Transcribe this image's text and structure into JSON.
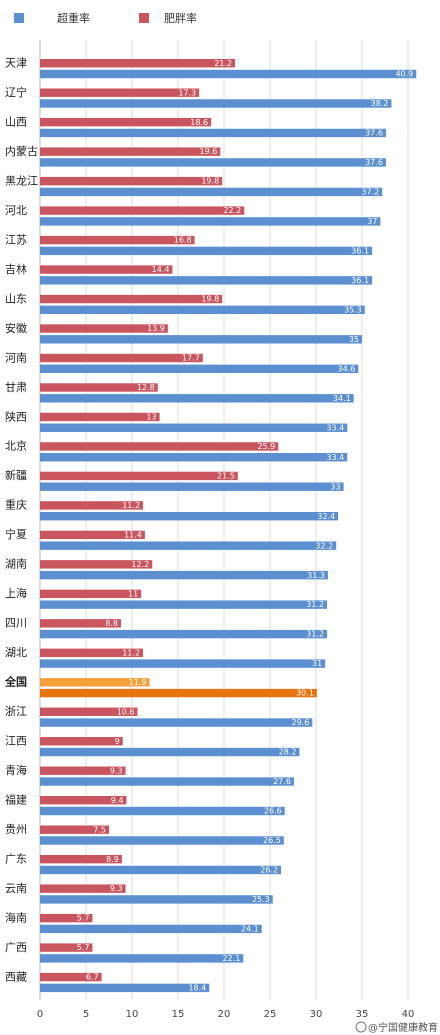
{
  "chart_data": {
    "type": "bar",
    "orientation": "horizontal",
    "categories": [
      "天津",
      "辽宁",
      "山西",
      "内蒙古",
      "黑龙江",
      "河北",
      "江苏",
      "吉林",
      "山东",
      "安徽",
      "河南",
      "甘肃",
      "陕西",
      "北京",
      "新疆",
      "重庆",
      "宁夏",
      "湖南",
      "上海",
      "四川",
      "湖北",
      "全国",
      "浙江",
      "江西",
      "青海",
      "福建",
      "贵州",
      "广东",
      "云南",
      "海南",
      "广西",
      "西藏"
    ],
    "series": [
      {
        "name": "超重率",
        "color": "#5b8fd0",
        "values": [
          40.9,
          38.2,
          37.6,
          37.6,
          37.2,
          37,
          36.1,
          36.1,
          35.3,
          35,
          34.6,
          34.1,
          33.4,
          33.4,
          33,
          32.4,
          32.2,
          31.3,
          31.2,
          31.2,
          31,
          30.1,
          29.6,
          28.2,
          27.6,
          26.6,
          26.5,
          26.2,
          25.3,
          24.1,
          22.1,
          18.4
        ]
      },
      {
        "name": "肥胖率",
        "color": "#c9565f",
        "values": [
          21.2,
          17.3,
          18.6,
          19.6,
          19.8,
          22.2,
          16.8,
          14.4,
          19.8,
          13.9,
          17.7,
          12.8,
          13,
          25.9,
          21.5,
          11.2,
          11.4,
          12.2,
          11,
          8.8,
          11.2,
          11.9,
          10.6,
          9,
          9.3,
          9.4,
          7.5,
          8.9,
          9.3,
          5.7,
          5.7,
          6.7
        ]
      }
    ],
    "highlight": {
      "category": "全国",
      "colors": [
        "#f4a03a",
        "#e8740f"
      ]
    },
    "xlim": [
      0,
      40
    ],
    "xticks": [
      "0",
      "5",
      "10",
      "15",
      "20",
      "25",
      "30",
      "35",
      "40"
    ],
    "grid": true,
    "legend": "top-left"
  },
  "watermark": {
    "text": "@宁国健康教育"
  }
}
